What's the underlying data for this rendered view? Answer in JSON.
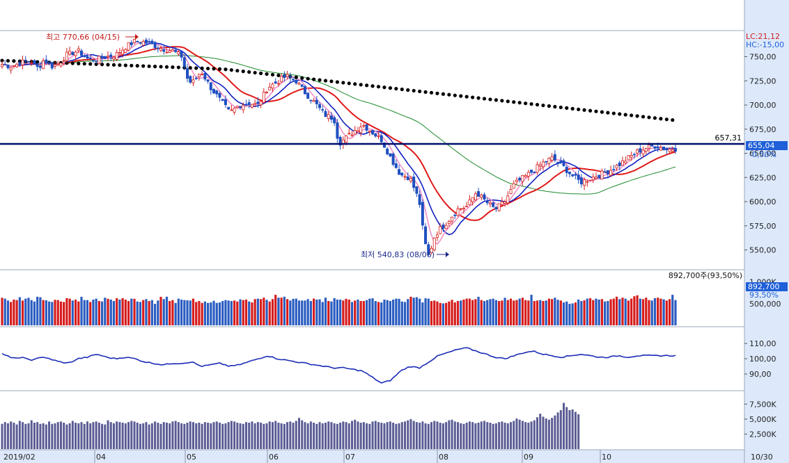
{
  "chart_data": {
    "type": "candlestick",
    "months": [
      "2019/02",
      "04",
      "05",
      "06",
      "07",
      "08",
      "09",
      "10",
      "10/30"
    ],
    "price_axis": {
      "ticks": [
        "750,00",
        "725,00",
        "700,00",
        "675,00",
        "650,00",
        "625,00",
        "600,00",
        "575,00",
        "550,00"
      ],
      "values": [
        750,
        725,
        700,
        675,
        650,
        625,
        600,
        575,
        550
      ],
      "ylim": [
        531,
        777
      ]
    },
    "lc_label": "LC:21,12",
    "hc_label": "HC:-15,00",
    "high_label": "최고 770,66 (04/15)",
    "low_label": "최저 540,83 (08/06)",
    "hline_value": 657.31,
    "hline_label": "657,31",
    "last_price_label": "655,04",
    "last_change_label": "-0,50%",
    "close_anchors": [
      [
        0,
        742
      ],
      [
        10,
        740
      ],
      [
        20,
        744
      ],
      [
        30,
        746
      ],
      [
        38,
        738
      ],
      [
        45,
        748
      ],
      [
        52,
        740
      ],
      [
        60,
        743
      ],
      [
        68,
        752
      ],
      [
        80,
        756
      ],
      [
        90,
        748
      ],
      [
        100,
        747
      ],
      [
        110,
        750
      ],
      [
        120,
        752
      ],
      [
        130,
        760
      ],
      [
        140,
        766
      ],
      [
        150,
        765
      ],
      [
        160,
        762
      ],
      [
        170,
        758
      ],
      [
        180,
        756
      ],
      [
        190,
        750
      ],
      [
        195,
        728
      ],
      [
        200,
        722
      ],
      [
        210,
        735
      ],
      [
        220,
        718
      ],
      [
        230,
        705
      ],
      [
        240,
        692
      ],
      [
        250,
        700
      ],
      [
        260,
        702
      ],
      [
        270,
        700
      ],
      [
        280,
        718
      ],
      [
        290,
        724
      ],
      [
        300,
        730
      ],
      [
        310,
        725
      ],
      [
        320,
        712
      ],
      [
        330,
        702
      ],
      [
        340,
        690
      ],
      [
        350,
        686
      ],
      [
        355,
        660
      ],
      [
        360,
        664
      ],
      [
        370,
        672
      ],
      [
        380,
        680
      ],
      [
        390,
        672
      ],
      [
        400,
        664
      ],
      [
        410,
        645
      ],
      [
        420,
        628
      ],
      [
        430,
        625
      ],
      [
        440,
        600
      ],
      [
        445,
        560
      ],
      [
        450,
        543
      ],
      [
        455,
        562
      ],
      [
        460,
        570
      ],
      [
        470,
        580
      ],
      [
        480,
        592
      ],
      [
        490,
        595
      ],
      [
        500,
        610
      ],
      [
        510,
        600
      ],
      [
        520,
        592
      ],
      [
        530,
        600
      ],
      [
        540,
        618
      ],
      [
        550,
        625
      ],
      [
        560,
        632
      ],
      [
        570,
        640
      ],
      [
        580,
        645
      ],
      [
        590,
        638
      ],
      [
        600,
        628
      ],
      [
        610,
        620
      ],
      [
        620,
        624
      ],
      [
        630,
        628
      ],
      [
        640,
        632
      ],
      [
        650,
        638
      ],
      [
        660,
        645
      ],
      [
        670,
        652
      ],
      [
        680,
        656
      ],
      [
        690,
        658
      ],
      [
        700,
        654
      ],
      [
        710,
        655
      ]
    ],
    "volume_axis": {
      "ticks": [
        "1,000K",
        "500,000"
      ],
      "values": [
        1000000,
        500000
      ],
      "ylim": [
        0,
        1250000
      ]
    },
    "volume_label": "892,700주(93,50%)",
    "volume_last_label": "892,700",
    "volume_pct_label": "93,50%",
    "volume_series": [
      1.1,
      1.12,
      1.04,
      0.98,
      1.08,
      1.06,
      1.18,
      1.04,
      1.12,
      1.1,
      1.06,
      1.0,
      1.2,
      1.18,
      1.06,
      1.05,
      1.0,
      0.98,
      1.02,
      1.06,
      1.0,
      0.98,
      1.14,
      1.12,
      1.04,
      1.08,
      1.0,
      1.14,
      1.06,
      1.06,
      0.98,
      1.08,
      1.12,
      1.02,
      1.0,
      1.16,
      1.06,
      1.08,
      1.02,
      1.14,
      1.08,
      1.14,
      1.08,
      1.02,
      1.12,
      1.06,
      1.0,
      0.98,
      1.06,
      1.1,
      1.02,
      1.06,
      0.9,
      1.04,
      1.14,
      1.1,
      1.2,
      1.02,
      1.06,
      0.94,
      1.12,
      1.08,
      1.06,
      1.0,
      1.04,
      1.12,
      0.98,
      1.02,
      0.94,
      1.0,
      0.94,
      0.96,
      0.98,
      0.94,
      0.96,
      1.02,
      1.06,
      1.04,
      1.02,
      1.04,
      1.0,
      1.04,
      1.06,
      1.08,
      1.0,
      0.96,
      1.1,
      1.12,
      1.1,
      1.16,
      1.02,
      1.0,
      1.1,
      1.28,
      1.16,
      1.16,
      1.2,
      1.1,
      1.04,
      1.06,
      1.12,
      1.04,
      1.04,
      1.04,
      1.1,
      1.02,
      1.12,
      1.08,
      1.04,
      0.98,
      1.16,
      1.02,
      1.0,
      1.14,
      1.08,
      1.08,
      1.04,
      1.06,
      1.08,
      0.98,
      1.04,
      1.08,
      1.02,
      1.02,
      1.06,
      1.12,
      1.08,
      1.02,
      0.98,
      0.96,
      1.08,
      1.06,
      1.02,
      1.08,
      1.12,
      1.06,
      1.0,
      0.98,
      1.1,
      1.2,
      1.16,
      1.18,
      1.12,
      0.96,
      1.08,
      1.12,
      1.02,
      1.04,
      1.0,
      0.94,
      0.92,
      0.94,
      1.0,
      1.02,
      0.96,
      1.02,
      1.04,
      1.08,
      1.12,
      1.12,
      1.06,
      1.1,
      1.14,
      1.06,
      1.02,
      1.06,
      1.1,
      1.12,
      1.06,
      1.02,
      1.04,
      1.1,
      1.06,
      1.12,
      1.04,
      1.06,
      1.12,
      1.16,
      1.06,
      1.04,
      1.22,
      1.02,
      1.04,
      1.06,
      1.02,
      1.04,
      1.12,
      1.1,
      1.16,
      1.02,
      1.04,
      0.96,
      1.0,
      0.9,
      0.92,
      0.96,
      1.08,
      1.02,
      1.0,
      1.12,
      1.14,
      1.06,
      1.12,
      1.08,
      1.1,
      1.0,
      1.02,
      1.04,
      1.12,
      1.2,
      1.1,
      1.16,
      1.12,
      1.04,
      1.12,
      1.22,
      1.2,
      1.12,
      1.1,
      1.16,
      1.06,
      1.04,
      1.14,
      1.16,
      1.12,
      1.04,
      1.04,
      1.1,
      1.28,
      1.06,
      1.04,
      1.08,
      1.14,
      1.12,
      1.02,
      1.18,
      1.16,
      1.22,
      1.16,
      1.28,
      1.14,
      1.1,
      1.18,
      1.26,
      1.14,
      1.12,
      1.16,
      1.14,
      1.04
    ],
    "osc_axis": {
      "ticks": [
        "110,00",
        "100,00",
        "90,00"
      ],
      "values": [
        110,
        100,
        90
      ],
      "ylim": [
        80,
        120
      ]
    },
    "osc_anchors": [
      [
        0,
        103
      ],
      [
        5,
        102.5
      ],
      [
        10,
        100
      ],
      [
        20,
        101
      ],
      [
        30,
        99
      ],
      [
        40,
        101
      ],
      [
        50,
        100
      ],
      [
        60,
        98
      ],
      [
        70,
        97
      ],
      [
        80,
        100
      ],
      [
        90,
        101
      ],
      [
        100,
        103
      ],
      [
        110,
        101
      ],
      [
        120,
        100
      ],
      [
        130,
        101
      ],
      [
        140,
        100
      ],
      [
        150,
        98
      ],
      [
        160,
        97
      ],
      [
        170,
        96
      ],
      [
        180,
        97
      ],
      [
        190,
        97
      ],
      [
        200,
        98
      ],
      [
        210,
        95
      ],
      [
        220,
        96
      ],
      [
        230,
        97
      ],
      [
        240,
        95
      ],
      [
        250,
        96
      ],
      [
        260,
        98
      ],
      [
        270,
        100
      ],
      [
        280,
        102
      ],
      [
        290,
        100
      ],
      [
        300,
        99
      ],
      [
        310,
        98
      ],
      [
        320,
        97
      ],
      [
        330,
        96
      ],
      [
        340,
        95
      ],
      [
        350,
        94
      ],
      [
        360,
        94
      ],
      [
        370,
        93
      ],
      [
        380,
        92
      ],
      [
        390,
        88
      ],
      [
        400,
        84
      ],
      [
        410,
        86
      ],
      [
        420,
        92
      ],
      [
        430,
        95
      ],
      [
        440,
        94
      ],
      [
        450,
        98
      ],
      [
        460,
        102
      ],
      [
        470,
        104
      ],
      [
        480,
        106
      ],
      [
        490,
        107
      ],
      [
        500,
        105
      ],
      [
        510,
        103
      ],
      [
        520,
        101
      ],
      [
        530,
        100
      ],
      [
        540,
        102
      ],
      [
        550,
        104
      ],
      [
        560,
        105
      ],
      [
        570,
        103
      ],
      [
        580,
        102
      ],
      [
        590,
        101
      ],
      [
        600,
        102
      ],
      [
        610,
        103
      ],
      [
        620,
        102
      ],
      [
        630,
        101
      ],
      [
        640,
        101
      ],
      [
        650,
        102
      ],
      [
        660,
        101
      ],
      [
        670,
        102
      ],
      [
        680,
        102
      ]
    ],
    "vol2_axis": {
      "ticks": [
        "7,500K",
        "5,000K",
        "2,500K"
      ],
      "values": [
        7500,
        5000,
        2500
      ],
      "ylim": [
        0,
        9500
      ]
    },
    "vol2_series": [
      4200,
      4500,
      4300,
      4600,
      4400,
      4100,
      4700,
      4500,
      4200,
      4300,
      4800,
      4400,
      4500,
      4200,
      4300,
      4100,
      4600,
      4200,
      4300,
      4500,
      4600,
      4400,
      4100,
      4300,
      4700,
      4400,
      4300,
      4500,
      4200,
      4600,
      4300,
      4500,
      4600,
      4400,
      4200,
      4100,
      4800,
      4500,
      4300,
      4600,
      4500,
      4400,
      4300,
      4500,
      4700,
      4600,
      4400,
      4200,
      4300,
      4500,
      4100,
      4300,
      4600,
      4400,
      4200,
      4500,
      4400,
      4300,
      4600,
      4700,
      4500,
      4300,
      4200,
      4400,
      4600,
      4500,
      4300,
      4400,
      4200,
      4500,
      4400,
      4300,
      4500,
      4600,
      4400,
      4200,
      4300,
      4500,
      4700,
      4600,
      4400,
      4300,
      4200,
      4500,
      4400,
      4600,
      4300,
      4500,
      4400,
      4200,
      4300,
      4600,
      4500,
      4700,
      4400,
      4300,
      4200,
      4500,
      4600,
      4400,
      4700,
      5200,
      4800,
      4500,
      4300,
      4600,
      4400,
      4200,
      4500,
      4300,
      4400,
      4600,
      4500,
      4300,
      4200,
      4400,
      4600,
      4500,
      4300,
      4700,
      4900,
      4600,
      4400,
      4500,
      4300,
      4200,
      4600,
      4700,
      4500,
      4400,
      4300,
      4500,
      4600,
      4400,
      4200,
      4300,
      4500,
      4600,
      4800,
      5000,
      4700,
      4500,
      4400,
      4600,
      4300,
      4200,
      4500,
      4700,
      4600,
      4400,
      4300,
      4500,
      4800,
      4900,
      4600,
      4500,
      4300,
      4200,
      4400,
      4600,
      4500,
      4300,
      4400,
      4600,
      4700,
      4500,
      4400,
      4200,
      4300,
      4500,
      4600,
      4400,
      4300,
      4500,
      4700,
      5100,
      4900,
      4700,
      4500,
      4400,
      4600,
      4800,
      5300,
      5900,
      5400,
      5100,
      4900,
      5200,
      5600,
      6100,
      6500,
      7700,
      7000,
      6500,
      6600,
      6200,
      5800
    ]
  }
}
